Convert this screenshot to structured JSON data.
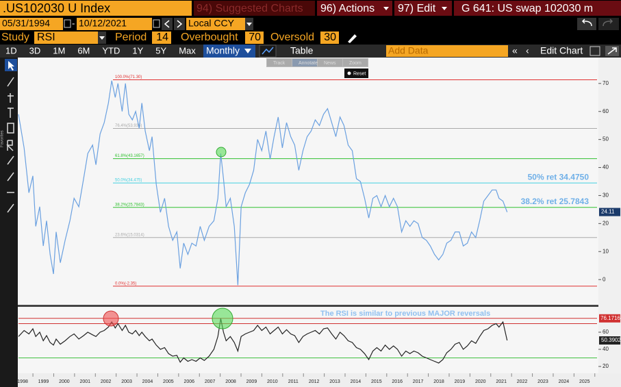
{
  "toolbar": {
    "security": ".US102030 U  Index",
    "suggested": "94) Suggested Charts",
    "actions": "96) Actions",
    "edit": "97) Edit",
    "title": "G 641: US swap 102030 m"
  },
  "dates": {
    "start": "05/31/1994",
    "end": "10/12/2021",
    "currency": "Local CCY"
  },
  "study": {
    "label": "Study",
    "name": "RSI",
    "period_label": "Period",
    "period": 14,
    "overbought_label": "Overbought",
    "overbought": 70,
    "oversold_label": "Oversold",
    "oversold": 30
  },
  "ranges": [
    "1D",
    "3D",
    "1M",
    "6M",
    "YTD",
    "1Y",
    "5Y",
    "Max"
  ],
  "frequency": "Monthly",
  "table": "Table",
  "add_data": "Add Data",
  "edit_chart": "Edit Chart",
  "tools": [
    "Track",
    "Annotate",
    "News",
    "Zoom"
  ],
  "reset": "Reset",
  "chart_data": [
    {
      "type": "line",
      "color": "#6aa0e0",
      "xlim": [
        1997.8,
        2025.6
      ],
      "ylim": [
        -9,
        79
      ],
      "xticks": [
        1998,
        1999,
        2000,
        2001,
        2002,
        2003,
        2004,
        2005,
        2006,
        2007,
        2008,
        2009,
        2010,
        2011,
        2012,
        2013,
        2014,
        2015,
        2016,
        2017,
        2018,
        2019,
        2020,
        2021,
        2022,
        2023,
        2024,
        2025
      ],
      "yticks": [
        0,
        10,
        20,
        30,
        40,
        50,
        60,
        70
      ],
      "levels": [
        {
          "value": 71.3,
          "label": "100.0%(71.30)",
          "color": "#e03030"
        },
        {
          "value": 53.936,
          "label": "76.4%(53.936)",
          "color": "#aaaaaa"
        },
        {
          "value": 43.1657,
          "label": "61.8%(43.1657)",
          "color": "#30c030"
        },
        {
          "value": 34.475,
          "label": "50.0%(34.475)",
          "color": "#40d0e0"
        },
        {
          "value": 25.7843,
          "label": "38.2%(25.7843)",
          "color": "#30c030"
        },
        {
          "value": 15.0314,
          "label": "23.6%(15.0314)",
          "color": "#aaaaaa"
        },
        {
          "value": -2.35,
          "label": "0.0%(-2.35)",
          "color": "#e03030"
        }
      ],
      "annotations": [
        {
          "text": "50% ret 34.4750",
          "y": 34.475
        },
        {
          "text": "38.2% ret 25.7843",
          "y": 25.7843
        }
      ],
      "x": [
        1997.8,
        1998.07,
        1998.3,
        1998.49,
        1998.63,
        1998.82,
        1998.99,
        1999.15,
        1999.32,
        1999.48,
        1999.61,
        1999.81,
        2000.04,
        2000.27,
        2000.47,
        2000.7,
        2000.93,
        2001.13,
        2001.36,
        2001.52,
        2001.72,
        2001.92,
        2002.12,
        2002.28,
        2002.45,
        2002.58,
        2002.78,
        2002.94,
        2003.1,
        2003.27,
        2003.43,
        2003.6,
        2003.73,
        2003.89,
        2004.09,
        2004.22,
        2004.42,
        2004.62,
        2004.82,
        2005.01,
        2005.21,
        2005.41,
        2005.57,
        2005.74,
        2005.94,
        2006.13,
        2006.33,
        2006.53,
        2006.73,
        2006.96,
        2007.19,
        2007.38,
        2007.52,
        2007.65,
        2007.78,
        2007.98,
        2008.17,
        2008.34,
        2008.5,
        2008.7,
        2008.9,
        2009.1,
        2009.29,
        2009.49,
        2009.69,
        2009.89,
        2010.08,
        2010.28,
        2010.48,
        2010.68,
        2010.88,
        2011.07,
        2011.27,
        2011.47,
        2011.67,
        2011.86,
        2012.06,
        2012.26,
        2012.46,
        2012.65,
        2012.85,
        2013.05,
        2013.25,
        2013.44,
        2013.64,
        2013.84,
        2014.04,
        2014.23,
        2014.43,
        2014.63,
        2014.83,
        2015.02,
        2015.22,
        2015.42,
        2015.62,
        2015.82,
        2016.01,
        2016.21,
        2016.41,
        2016.61,
        2016.8,
        2017.0,
        2017.2,
        2017.4,
        2017.59,
        2017.79,
        2017.99,
        2018.19,
        2018.38,
        2018.58,
        2018.78,
        2018.98,
        2019.17,
        2019.37,
        2019.57,
        2019.77,
        2019.96,
        2020.16,
        2020.36,
        2020.56,
        2020.75,
        2020.89,
        2021.08,
        2021.28
      ],
      "values": [
        59,
        47,
        31,
        37,
        19,
        26,
        12,
        21,
        9,
        2,
        17,
        6,
        14,
        21,
        29,
        26,
        36,
        45,
        48,
        41,
        52,
        56,
        63,
        71,
        65,
        70,
        60,
        70,
        59,
        57,
        60,
        54,
        63,
        53,
        46,
        51,
        34,
        24,
        29,
        19,
        14,
        17,
        4,
        13,
        9,
        13,
        12,
        19,
        14,
        19,
        21,
        29,
        45,
        36,
        26,
        29,
        19,
        -2,
        26,
        31,
        34,
        39,
        50,
        46,
        53,
        43,
        51,
        58,
        47,
        56,
        51,
        48,
        39,
        46,
        51,
        53,
        57,
        55,
        59,
        61,
        56,
        51,
        58,
        55,
        48,
        46,
        36,
        35,
        29,
        22,
        29,
        30,
        26,
        30,
        26,
        29,
        26,
        17,
        21,
        19,
        21,
        20,
        15,
        14,
        12,
        9,
        7,
        9,
        13,
        14,
        17,
        17,
        12,
        13,
        17,
        15,
        21,
        28,
        30,
        32,
        32,
        29,
        28,
        24.11
      ]
    },
    {
      "type": "line",
      "color": "#222222",
      "xlim": [
        1997.8,
        2025.6
      ],
      "ylim": [
        12,
        89.6
      ],
      "yticks": [
        20,
        40,
        60
      ],
      "levels": [
        {
          "value": 76.1716,
          "color": "#d03030"
        },
        {
          "value": 70,
          "color": "#d03030"
        },
        {
          "value": 30,
          "color": "#40c040"
        }
      ],
      "annotation": "The RSI is similar to previous MAJOR reversals",
      "x": [
        1997.8,
        1998.07,
        1998.3,
        1998.49,
        1998.63,
        1998.82,
        1998.99,
        1999.15,
        1999.32,
        1999.48,
        1999.61,
        1999.81,
        2000.04,
        2000.27,
        2000.47,
        2000.7,
        2000.93,
        2001.13,
        2001.36,
        2001.52,
        2001.72,
        2001.92,
        2002.12,
        2002.28,
        2002.45,
        2002.58,
        2002.78,
        2002.94,
        2003.1,
        2003.27,
        2003.43,
        2003.6,
        2003.73,
        2003.89,
        2004.09,
        2004.22,
        2004.42,
        2004.62,
        2004.82,
        2005.01,
        2005.21,
        2005.41,
        2005.57,
        2005.74,
        2005.94,
        2006.13,
        2006.33,
        2006.53,
        2006.73,
        2006.96,
        2007.19,
        2007.38,
        2007.52,
        2007.65,
        2007.78,
        2007.98,
        2008.17,
        2008.34,
        2008.5,
        2008.7,
        2008.9,
        2009.1,
        2009.29,
        2009.49,
        2009.69,
        2009.89,
        2010.08,
        2010.28,
        2010.48,
        2010.68,
        2010.88,
        2011.07,
        2011.27,
        2011.47,
        2011.67,
        2011.86,
        2012.06,
        2012.26,
        2012.46,
        2012.65,
        2012.85,
        2013.05,
        2013.25,
        2013.44,
        2013.64,
        2013.84,
        2014.04,
        2014.23,
        2014.43,
        2014.63,
        2014.83,
        2015.02,
        2015.22,
        2015.42,
        2015.62,
        2015.82,
        2016.01,
        2016.21,
        2016.41,
        2016.61,
        2016.8,
        2017.0,
        2017.2,
        2017.4,
        2017.59,
        2017.79,
        2017.99,
        2018.19,
        2018.38,
        2018.58,
        2018.78,
        2018.98,
        2019.17,
        2019.37,
        2019.57,
        2019.77,
        2019.96,
        2020.16,
        2020.36,
        2020.56,
        2020.75,
        2020.89,
        2021.08,
        2021.28
      ],
      "values": [
        55,
        62,
        58,
        64,
        55,
        60,
        50,
        56,
        48,
        45,
        52,
        46,
        50,
        55,
        58,
        52,
        56,
        60,
        57,
        55,
        60,
        62,
        66,
        72,
        65,
        70,
        62,
        68,
        60,
        58,
        62,
        56,
        60,
        55,
        50,
        52,
        45,
        40,
        42,
        35,
        32,
        33,
        25,
        30,
        26,
        28,
        26,
        30,
        27,
        32,
        40,
        55,
        76,
        60,
        50,
        55,
        48,
        38,
        55,
        58,
        60,
        62,
        68,
        62,
        66,
        58,
        62,
        66,
        58,
        63,
        58,
        56,
        48,
        55,
        58,
        60,
        62,
        58,
        64,
        65,
        58,
        52,
        60,
        56,
        50,
        48,
        42,
        40,
        35,
        28,
        38,
        42,
        38,
        45,
        40,
        44,
        40,
        32,
        38,
        35,
        38,
        36,
        32,
        30,
        28,
        26,
        24,
        28,
        36,
        40,
        46,
        48,
        40,
        44,
        50,
        47,
        55,
        62,
        64,
        68,
        70,
        66,
        72,
        50.3902
      ]
    }
  ]
}
